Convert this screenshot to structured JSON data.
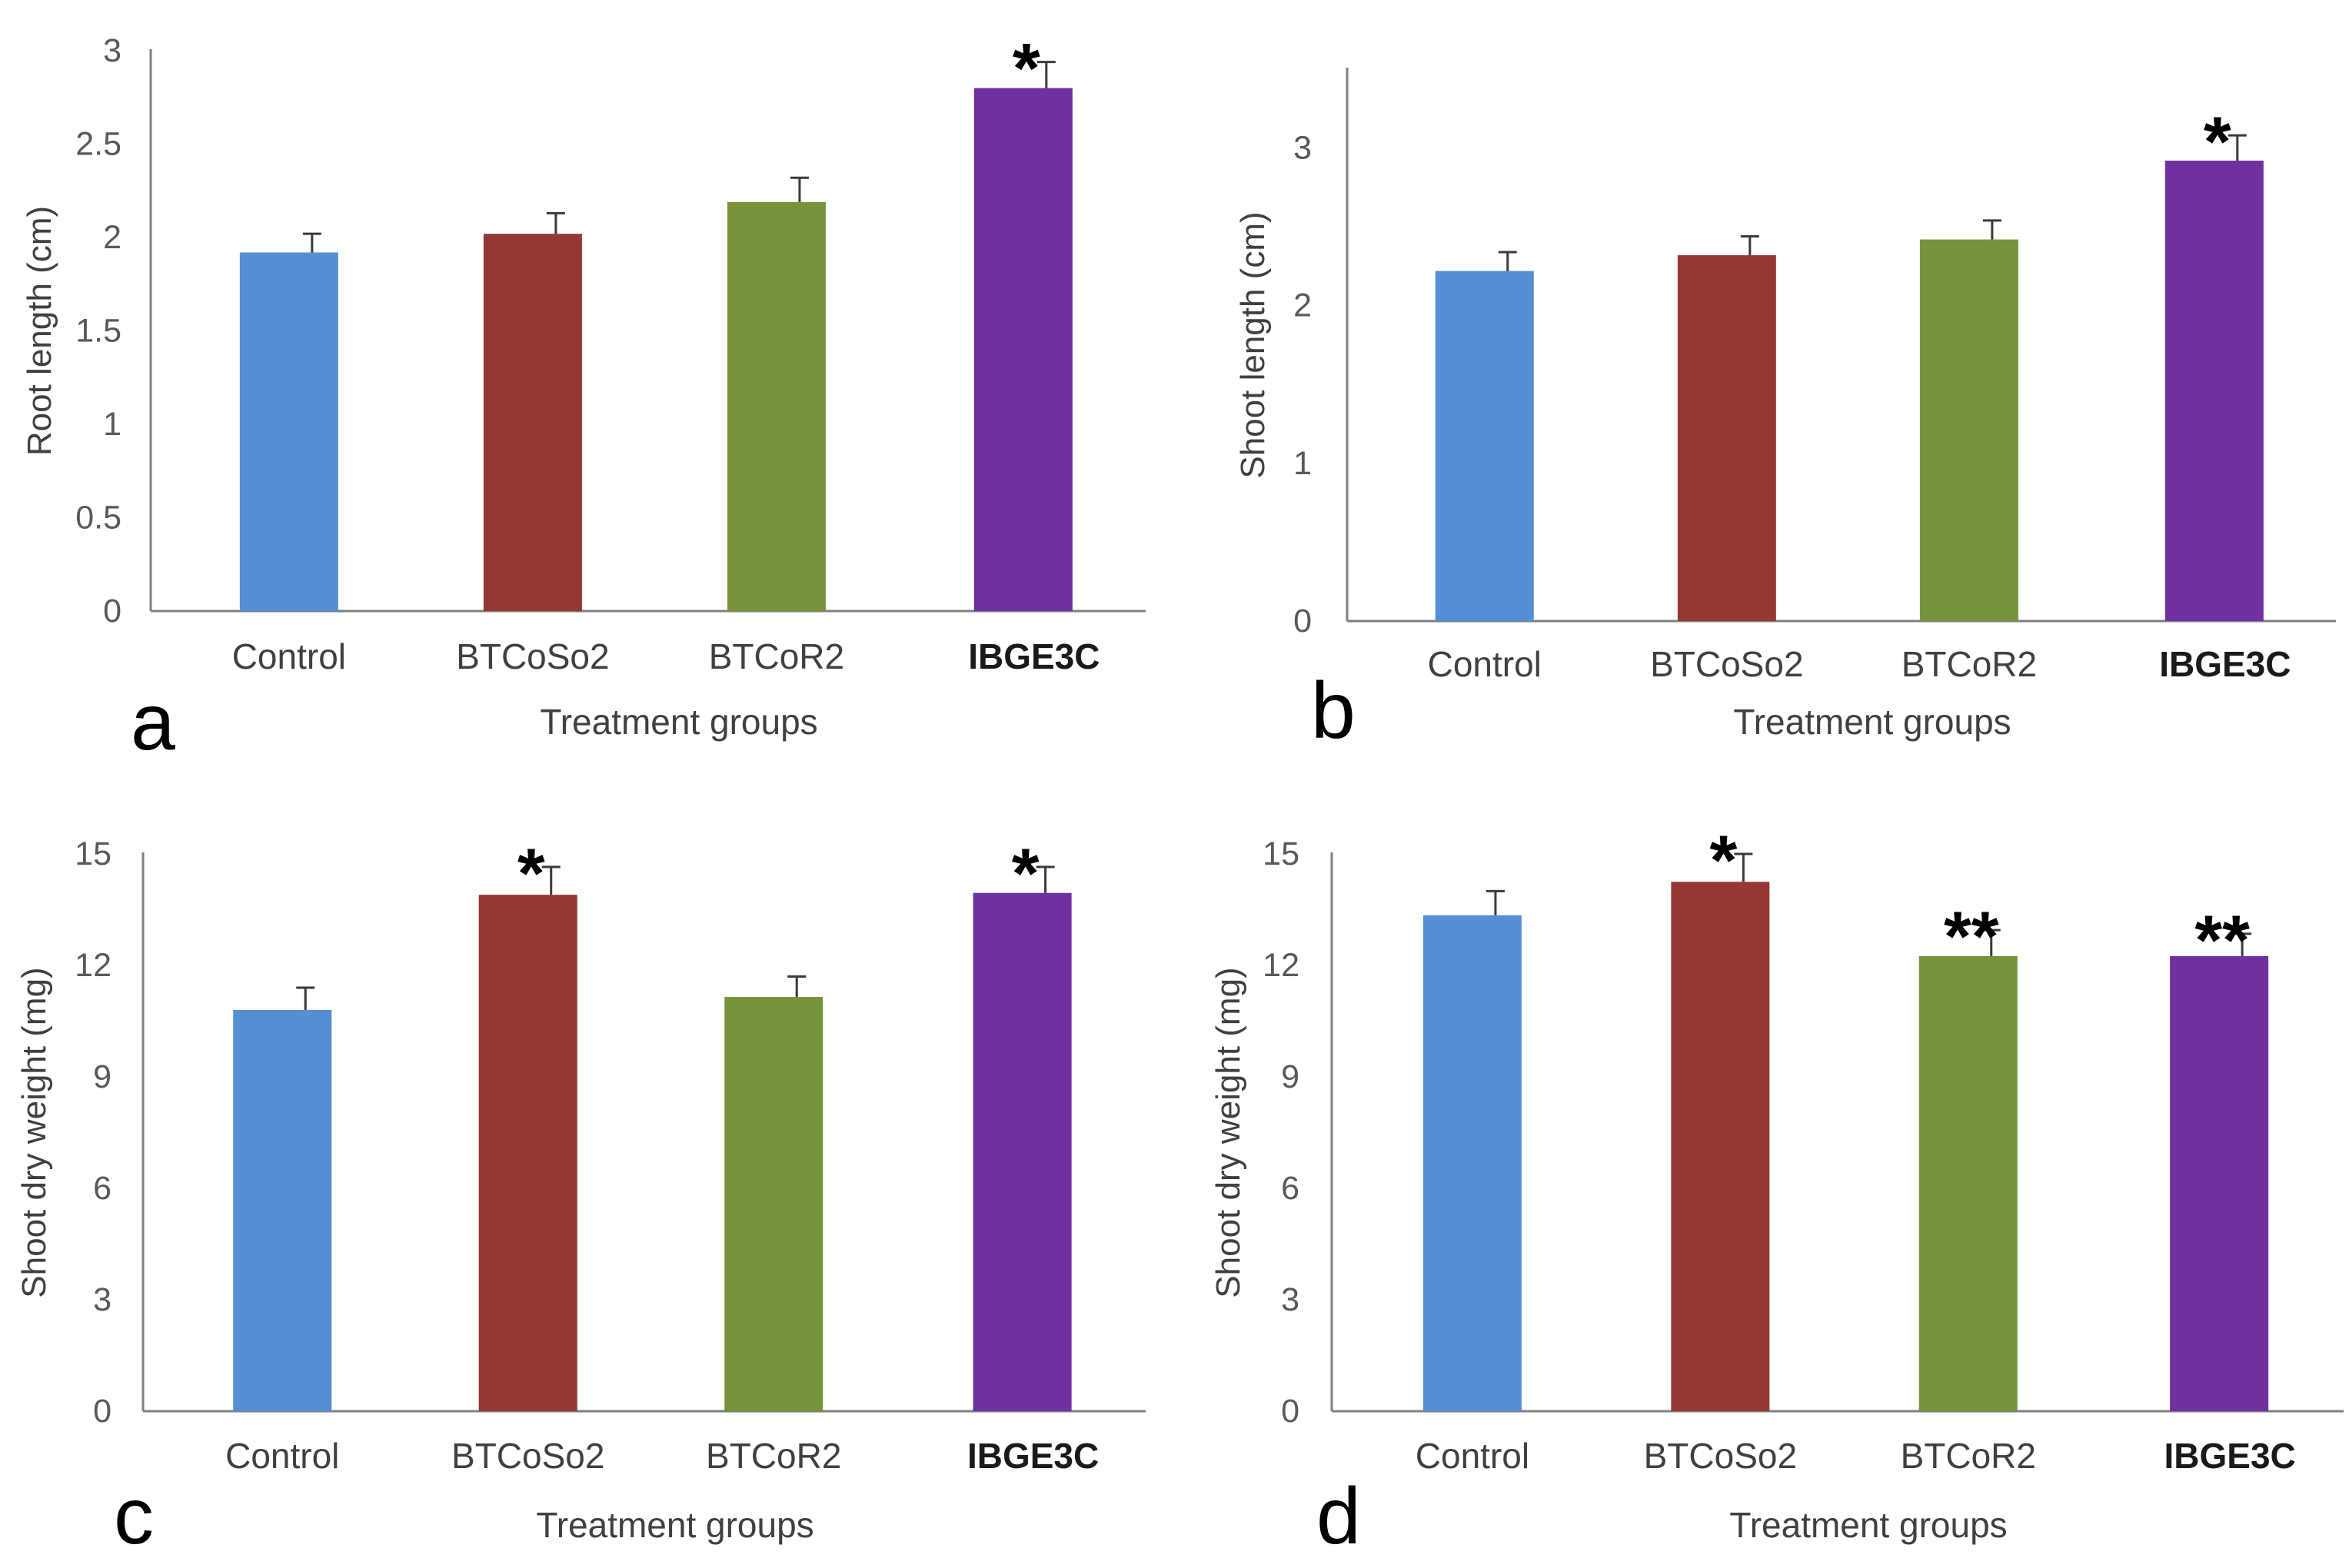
{
  "figure": {
    "colors": {
      "Control": "#558ED5",
      "BTCoSo2": "#953735",
      "BTCoR2": "#77933C",
      "IBGE3C": "#7030A0"
    }
  },
  "chart_data": [
    {
      "panel": "a",
      "type": "bar",
      "categories": [
        "Control",
        "BTCoSo2",
        "BTCoR2",
        "IBGE3C"
      ],
      "values": [
        1.92,
        2.02,
        2.19,
        2.8
      ],
      "errors": [
        0.1,
        0.11,
        0.13,
        0.14
      ],
      "significance": [
        "",
        "",
        "",
        "*"
      ],
      "xlabel": "Treatment  groups",
      "ylabel": "Root length (cm)",
      "ylim": [
        0,
        3
      ],
      "yticks": [
        0,
        0.5,
        1,
        1.5,
        2,
        2.5,
        3
      ],
      "ytick_labels": [
        "0",
        "0.5",
        "1",
        "1.5",
        "2",
        "2.5",
        "3"
      ],
      "grid": false
    },
    {
      "panel": "b",
      "type": "bar",
      "categories": [
        "Control",
        "BTCoSo2",
        "BTCoR2",
        "IBGE3C"
      ],
      "values": [
        2.22,
        2.32,
        2.42,
        2.92
      ],
      "errors": [
        0.12,
        0.12,
        0.12,
        0.16
      ],
      "significance": [
        "",
        "",
        "",
        "*"
      ],
      "xlabel": "Treatment  groups",
      "ylabel": "Shoot length (cm)",
      "ylim": [
        0,
        3.5
      ],
      "yticks": [
        0,
        1,
        2,
        3
      ],
      "ytick_labels": [
        "0",
        "1",
        "2",
        "3"
      ],
      "grid": false
    },
    {
      "panel": "c",
      "type": "bar",
      "categories": [
        "Control",
        "BTCoSo2",
        "BTCoR2",
        "IBGE3C"
      ],
      "values": [
        10.8,
        13.9,
        11.15,
        13.95
      ],
      "errors": [
        0.6,
        0.75,
        0.55,
        0.7
      ],
      "significance": [
        "",
        "*",
        "",
        "*"
      ],
      "xlabel": "Treatment  groups",
      "ylabel": "Shoot dry weight (mg)",
      "ylim": [
        0,
        15
      ],
      "yticks": [
        0,
        3,
        6,
        9,
        12,
        15
      ],
      "ytick_labels": [
        "0",
        "3",
        "6",
        "9",
        "12",
        "15"
      ],
      "grid": false
    },
    {
      "panel": "d",
      "type": "bar",
      "categories": [
        "Control",
        "BTCoSo2",
        "BTCoR2",
        "IBGE3C"
      ],
      "values": [
        13.35,
        14.25,
        12.25,
        12.25
      ],
      "errors": [
        0.65,
        0.75,
        0.7,
        0.6
      ],
      "significance": [
        "",
        "*",
        "**",
        "**"
      ],
      "xlabel": "Treatment  groups",
      "ylabel": "Shoot dry weight (mg)",
      "ylim": [
        0,
        15
      ],
      "yticks": [
        0,
        3,
        6,
        9,
        12,
        15
      ],
      "ytick_labels": [
        "0",
        "3",
        "6",
        "9",
        "12",
        "15"
      ],
      "grid": false
    }
  ]
}
